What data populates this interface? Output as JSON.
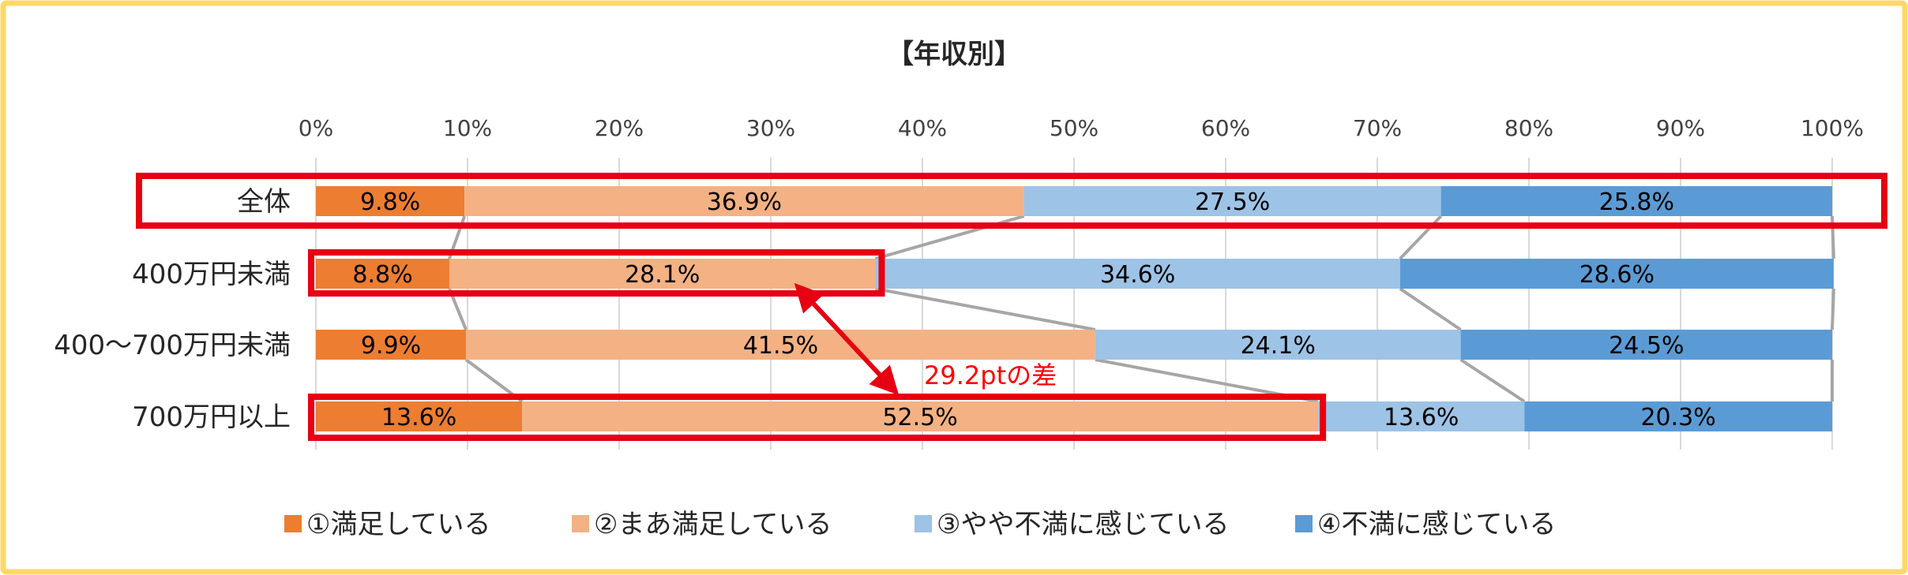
{
  "chart_data": {
    "type": "bar",
    "orientation": "horizontal",
    "stacked": "percent",
    "title": "【年収別】",
    "categories": [
      "全体",
      "400万円未満",
      "400～700万円未満",
      "700万円以上"
    ],
    "xlim": [
      0,
      100
    ],
    "x_ticks": [
      "0%",
      "10%",
      "20%",
      "30%",
      "40%",
      "50%",
      "60%",
      "70%",
      "80%",
      "90%",
      "100%"
    ],
    "grid": true,
    "legend_position": "bottom",
    "series": [
      {
        "name": "①満足している",
        "color": "#ED7D31",
        "values": [
          9.8,
          8.8,
          9.9,
          13.6
        ],
        "labels": [
          "9.8%",
          "8.8%",
          "9.9%",
          "13.6%"
        ]
      },
      {
        "name": "②まあ満足している",
        "color": "#F4B183",
        "values": [
          36.9,
          28.1,
          41.5,
          52.5
        ],
        "labels": [
          "36.9%",
          "28.1%",
          "41.5%",
          "52.5%"
        ]
      },
      {
        "name": "③やや不満に感じている",
        "color": "#9DC3E6",
        "values": [
          27.5,
          34.6,
          24.1,
          13.6
        ],
        "labels": [
          "27.5%",
          "34.6%",
          "24.1%",
          "13.6%"
        ]
      },
      {
        "name": "④不満に感じている",
        "color": "#5B9BD5",
        "values": [
          25.8,
          28.6,
          24.5,
          20.3
        ],
        "labels": [
          "25.8%",
          "28.6%",
          "24.5%",
          "20.3%"
        ]
      }
    ],
    "annotations": [
      {
        "text": "29.2ptの差",
        "color": "#FF0000"
      }
    ]
  },
  "colors": {
    "frame_border": "#FFD966",
    "highlight": "#E60012",
    "series_lines": "#A6A6A6",
    "grid": "#D9D9D9"
  }
}
